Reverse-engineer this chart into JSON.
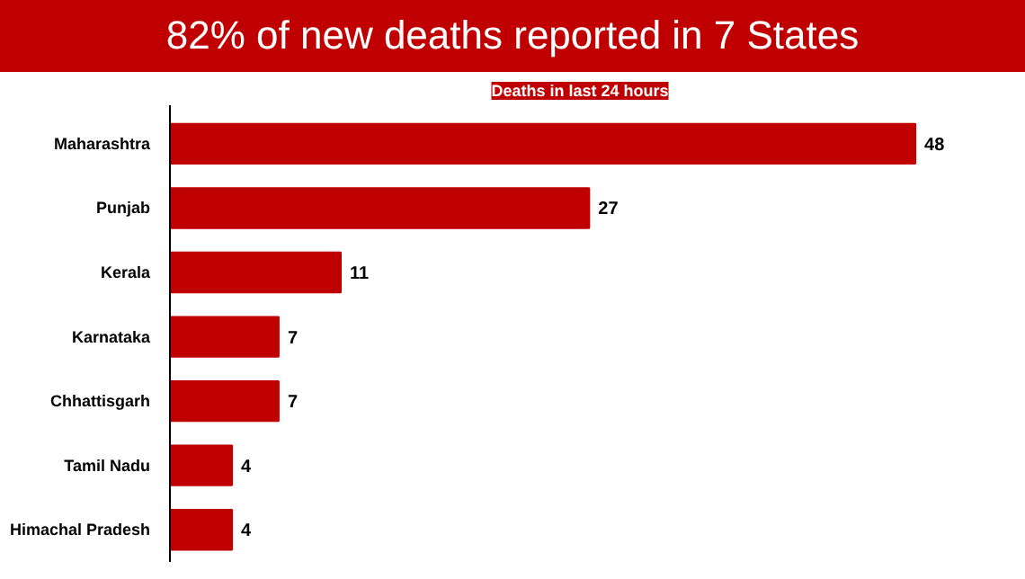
{
  "chart_data": {
    "type": "bar",
    "orientation": "horizontal",
    "title": "82% of new deaths reported in 7 States",
    "subtitle": "Deaths in last 24 hours",
    "categories": [
      "Maharashtra",
      "Punjab",
      "Kerala",
      "Karnataka",
      "Chhattisgarh",
      "Tamil Nadu",
      "Himachal Pradesh"
    ],
    "values": [
      48,
      27,
      11,
      7,
      7,
      4,
      4
    ],
    "color": "#c00000",
    "data_labels": true
  }
}
